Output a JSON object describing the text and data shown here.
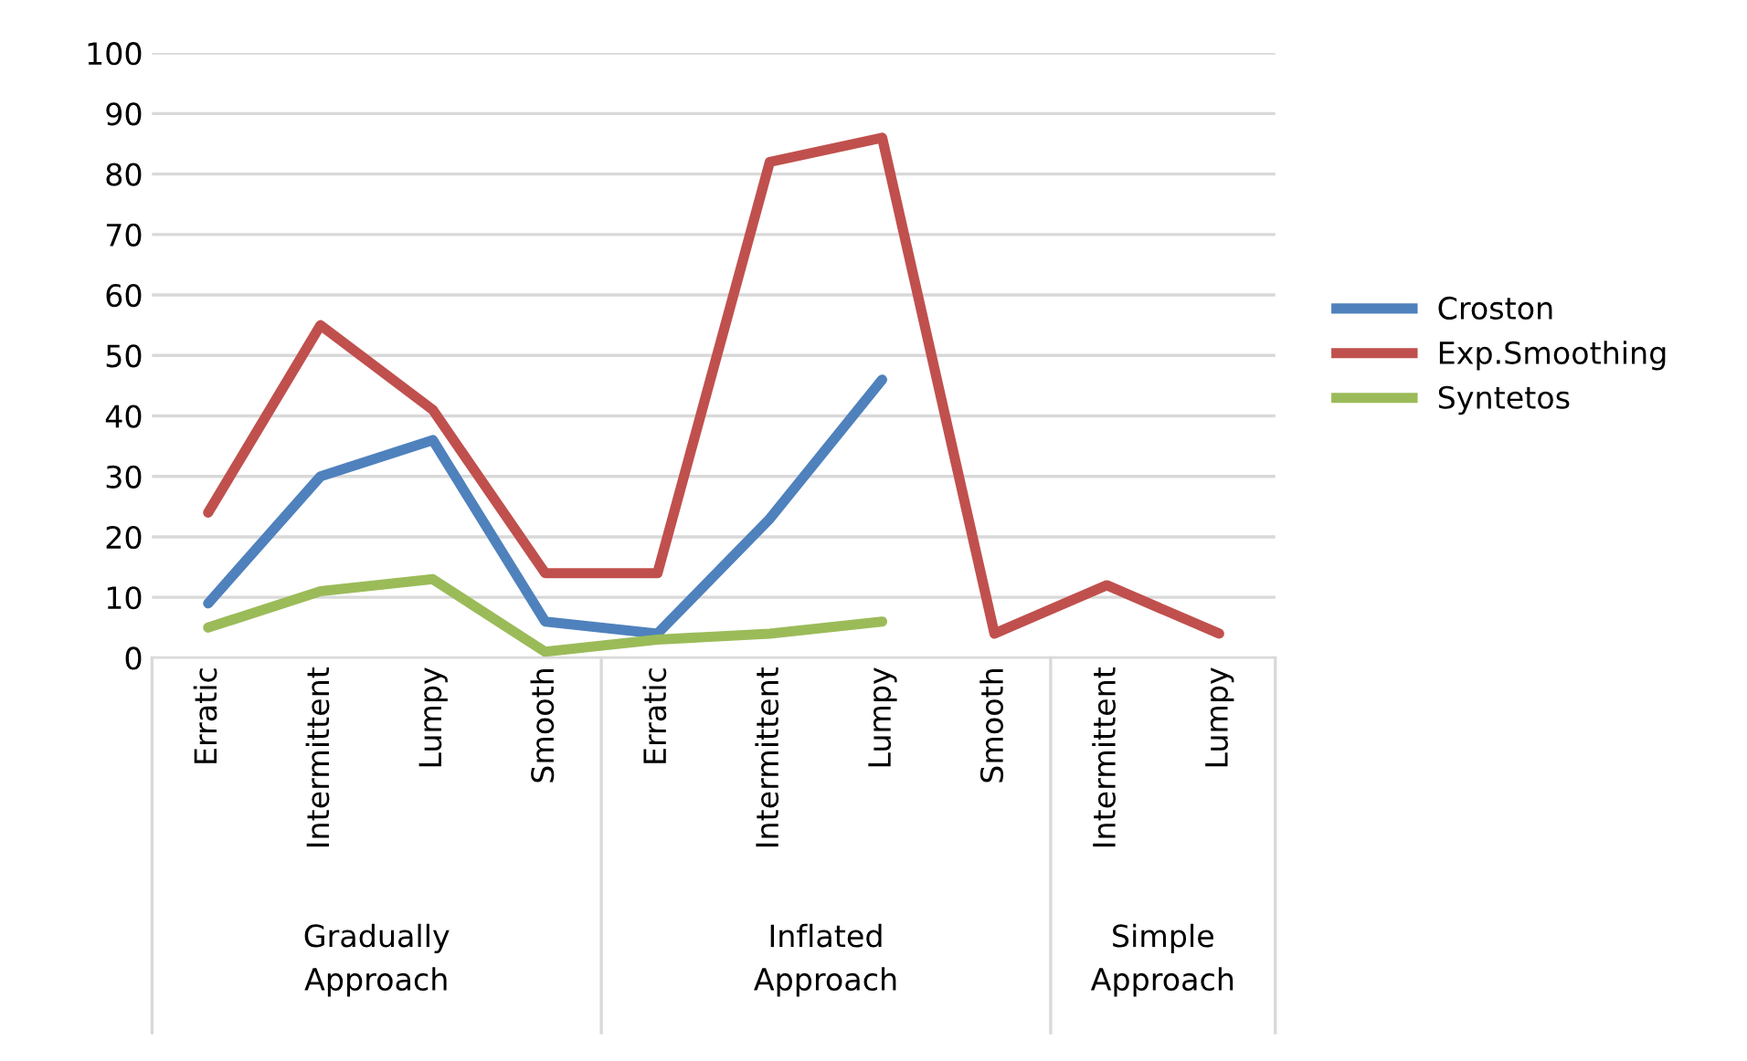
{
  "chart_data": {
    "type": "line",
    "categories": [
      "Erratic",
      "Intermittent",
      "Lumpy",
      "Smooth",
      "Erratic",
      "Intermittent",
      "Lumpy",
      "Smooth",
      "Intermittent",
      "Lumpy"
    ],
    "series": [
      {
        "name": "Croston",
        "color": "#4f81bd",
        "values": [
          9,
          30,
          36,
          6,
          4,
          23,
          46,
          null,
          null,
          null
        ]
      },
      {
        "name": "Exp.Smoothing",
        "color": "#c0504d",
        "values": [
          24,
          55,
          41,
          14,
          14,
          82,
          86,
          4,
          12,
          4
        ]
      },
      {
        "name": "Syntetos",
        "color": "#9bbb59",
        "values": [
          5,
          11,
          13,
          1,
          3,
          4,
          6,
          null,
          null,
          null
        ]
      }
    ],
    "annotations": [
      "Gradually\nApproach",
      "Inflated\nApproach",
      "Simple\nApproach"
    ],
    "ylim": [
      0,
      100
    ],
    "yticks": [
      0,
      10,
      20,
      30,
      40,
      50,
      60,
      70,
      80,
      90,
      100
    ],
    "grid": "y",
    "legend": "right",
    "marker": "none",
    "line_style": "solid"
  }
}
